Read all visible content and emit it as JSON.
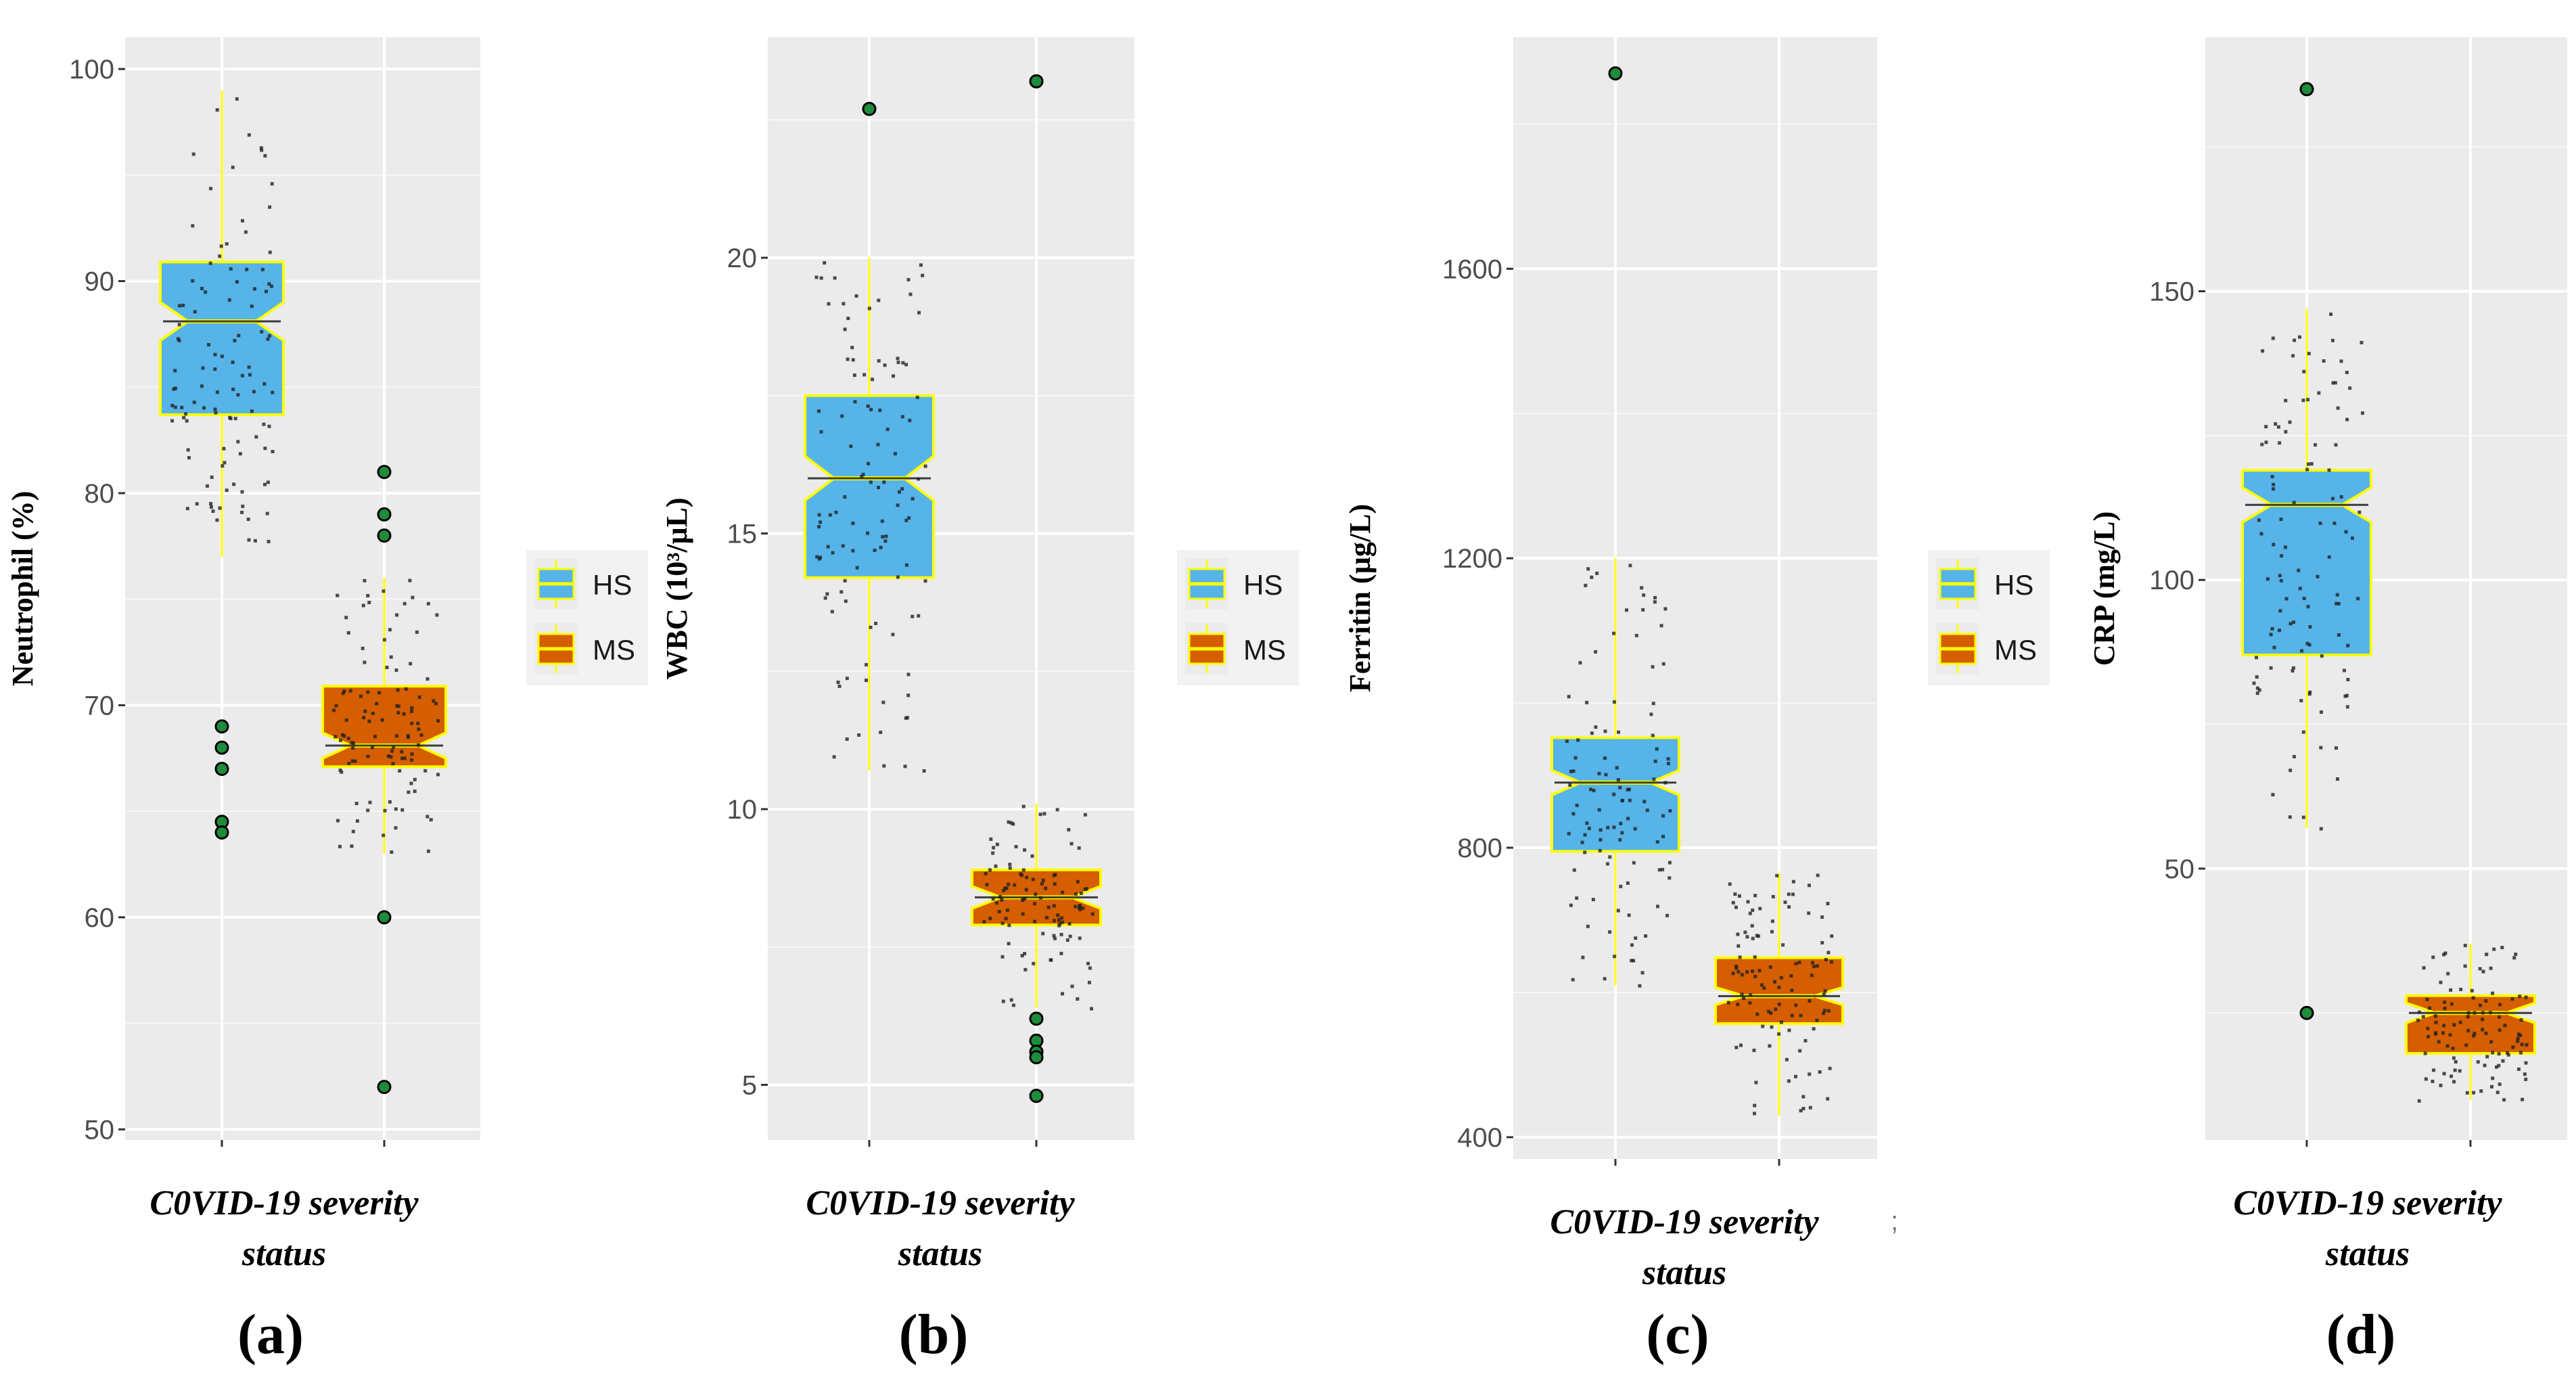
{
  "colors": {
    "panel_bg": "#ebebeb",
    "grid": "#ffffff",
    "hs_fill": "#56b4e9",
    "ms_fill": "#d55e00",
    "box_border": "#ffff00",
    "whisker": "#ffff00",
    "median": "#ffff00",
    "outlier_fill": "#1e8c3a",
    "jitter": "#222222"
  },
  "chart_data": [
    {
      "type": "box",
      "panel_label": "(a)",
      "xlabel_lines": [
        "C0VID-19 severity",
        "status"
      ],
      "ylabel": "Neutrophil (%)",
      "ylim": [
        49.5,
        101.5
      ],
      "yticks": [
        50,
        60,
        70,
        80,
        90,
        100
      ],
      "categories": [
        "HS",
        "MS"
      ],
      "legend": [
        "HS",
        "MS"
      ],
      "series": [
        {
          "name": "HS",
          "q1": 83.7,
          "median": 88.1,
          "q3": 90.9,
          "whisker_low": 77,
          "whisker_high": 99,
          "notch": [
            87.2,
            89.0
          ],
          "outliers": [
            69,
            68,
            67,
            64.5,
            64
          ],
          "n_jitter": 110
        },
        {
          "name": "MS",
          "q1": 67.1,
          "median": 68.1,
          "q3": 70.9,
          "whisker_low": 63,
          "whisker_high": 76,
          "notch": [
            67.5,
            68.7
          ],
          "outliers": [
            81,
            79,
            78,
            60,
            52
          ],
          "n_jitter": 110
        }
      ]
    },
    {
      "type": "box",
      "panel_label": "(b)",
      "xlabel_lines": [
        "C0VID-19 severity",
        "status"
      ],
      "ylabel": "WBC (10³/μL)",
      "ylim": [
        4.0,
        24.0
      ],
      "yticks": [
        5,
        10,
        15,
        20
      ],
      "categories": [
        "HS",
        "MS"
      ],
      "legend": [
        "HS",
        "MS"
      ],
      "series": [
        {
          "name": "HS",
          "q1": 14.2,
          "median": 16.0,
          "q3": 17.5,
          "whisker_low": 10.7,
          "whisker_high": 20.0,
          "notch": [
            15.6,
            16.4
          ],
          "outliers": [
            22.7
          ],
          "n_jitter": 110
        },
        {
          "name": "MS",
          "q1": 7.9,
          "median": 8.4,
          "q3": 8.9,
          "whisker_low": 6.4,
          "whisker_high": 10.1,
          "notch": [
            8.2,
            8.6
          ],
          "outliers": [
            23.2,
            6.2,
            5.8,
            5.6,
            5.5,
            4.8
          ],
          "n_jitter": 110
        }
      ]
    },
    {
      "type": "box",
      "panel_label": "(c)",
      "xlabel_lines": [
        "C0VID-19 severity",
        "status"
      ],
      "ylabel": "Ferritin (µg/L)",
      "ylim": [
        370,
        1920
      ],
      "yticks": [
        400,
        800,
        1200,
        1600
      ],
      "categories": [
        "HS",
        "MS"
      ],
      "legend": [
        "HS",
        "MS"
      ],
      "series": [
        {
          "name": "HS",
          "q1": 795,
          "median": 890,
          "q3": 952,
          "whisker_low": 610,
          "whisker_high": 1200,
          "notch": [
            873,
            907
          ],
          "outliers": [
            1870
          ],
          "n_jitter": 110
        },
        {
          "name": "MS",
          "q1": 557,
          "median": 595,
          "q3": 648,
          "whisker_low": 430,
          "whisker_high": 765,
          "notch": [
            583,
            607
          ],
          "outliers": [],
          "n_jitter": 110
        }
      ]
    },
    {
      "type": "box",
      "panel_label": "(d)",
      "xlabel_lines": [
        "C0VID-19 severity",
        "status"
      ],
      "ylabel": "CRP (mg/L)",
      "ylim": [
        3,
        194
      ],
      "yticks": [
        50,
        100,
        150
      ],
      "categories": [
        "HS",
        "MS"
      ],
      "legend": [
        "HS",
        "MS"
      ],
      "series": [
        {
          "name": "HS",
          "q1": 87,
          "median": 113,
          "q3": 119,
          "whisker_low": 57,
          "whisker_high": 147,
          "notch": [
            110,
            116
          ],
          "outliers": [
            185,
            25
          ],
          "n_jitter": 110
        },
        {
          "name": "MS",
          "q1": 18,
          "median": 25,
          "q3": 28,
          "whisker_low": 10,
          "whisker_high": 37,
          "notch": [
            23.3,
            26.7
          ],
          "outliers": [],
          "n_jitter": 110
        }
      ]
    }
  ],
  "stray_mark": ";"
}
